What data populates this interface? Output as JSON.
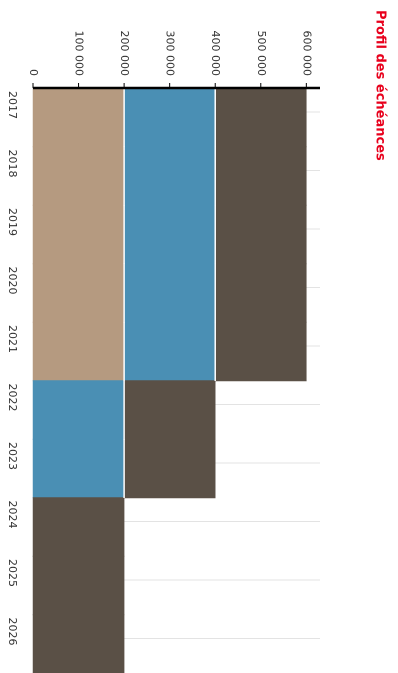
{
  "chart_data": {
    "type": "bar",
    "stacked": true,
    "orientation": "horizontal",
    "title": "Profil des échéances",
    "categories": [
      "2017",
      "2018",
      "2019",
      "2020",
      "2021",
      "2022",
      "2023",
      "2024",
      "2025",
      "2026"
    ],
    "series": [
      {
        "color": "#b59a80",
        "values": [
          200000,
          200000,
          200000,
          200000,
          200000,
          0,
          0,
          0,
          0,
          0
        ]
      },
      {
        "color": "#4a8fb4",
        "values": [
          200000,
          200000,
          200000,
          200000,
          200000,
          200000,
          200000,
          0,
          0,
          0
        ]
      },
      {
        "color": "#5a5046",
        "values": [
          200000,
          200000,
          200000,
          200000,
          200000,
          200000,
          200000,
          200000,
          200000,
          200000
        ]
      }
    ],
    "ylim": [
      0,
      630000
    ],
    "yticks": [
      0,
      {
        "value": 100000,
        "label": "100 000"
      },
      {
        "value": 200000,
        "label": "200 000"
      },
      {
        "value": 300000,
        "label": "300 000"
      },
      {
        "value": 400000,
        "label": "400 000"
      },
      {
        "value": 500000,
        "label": "500 000"
      },
      {
        "value": 600000,
        "label": "600 000"
      }
    ],
    "grid": true
  }
}
